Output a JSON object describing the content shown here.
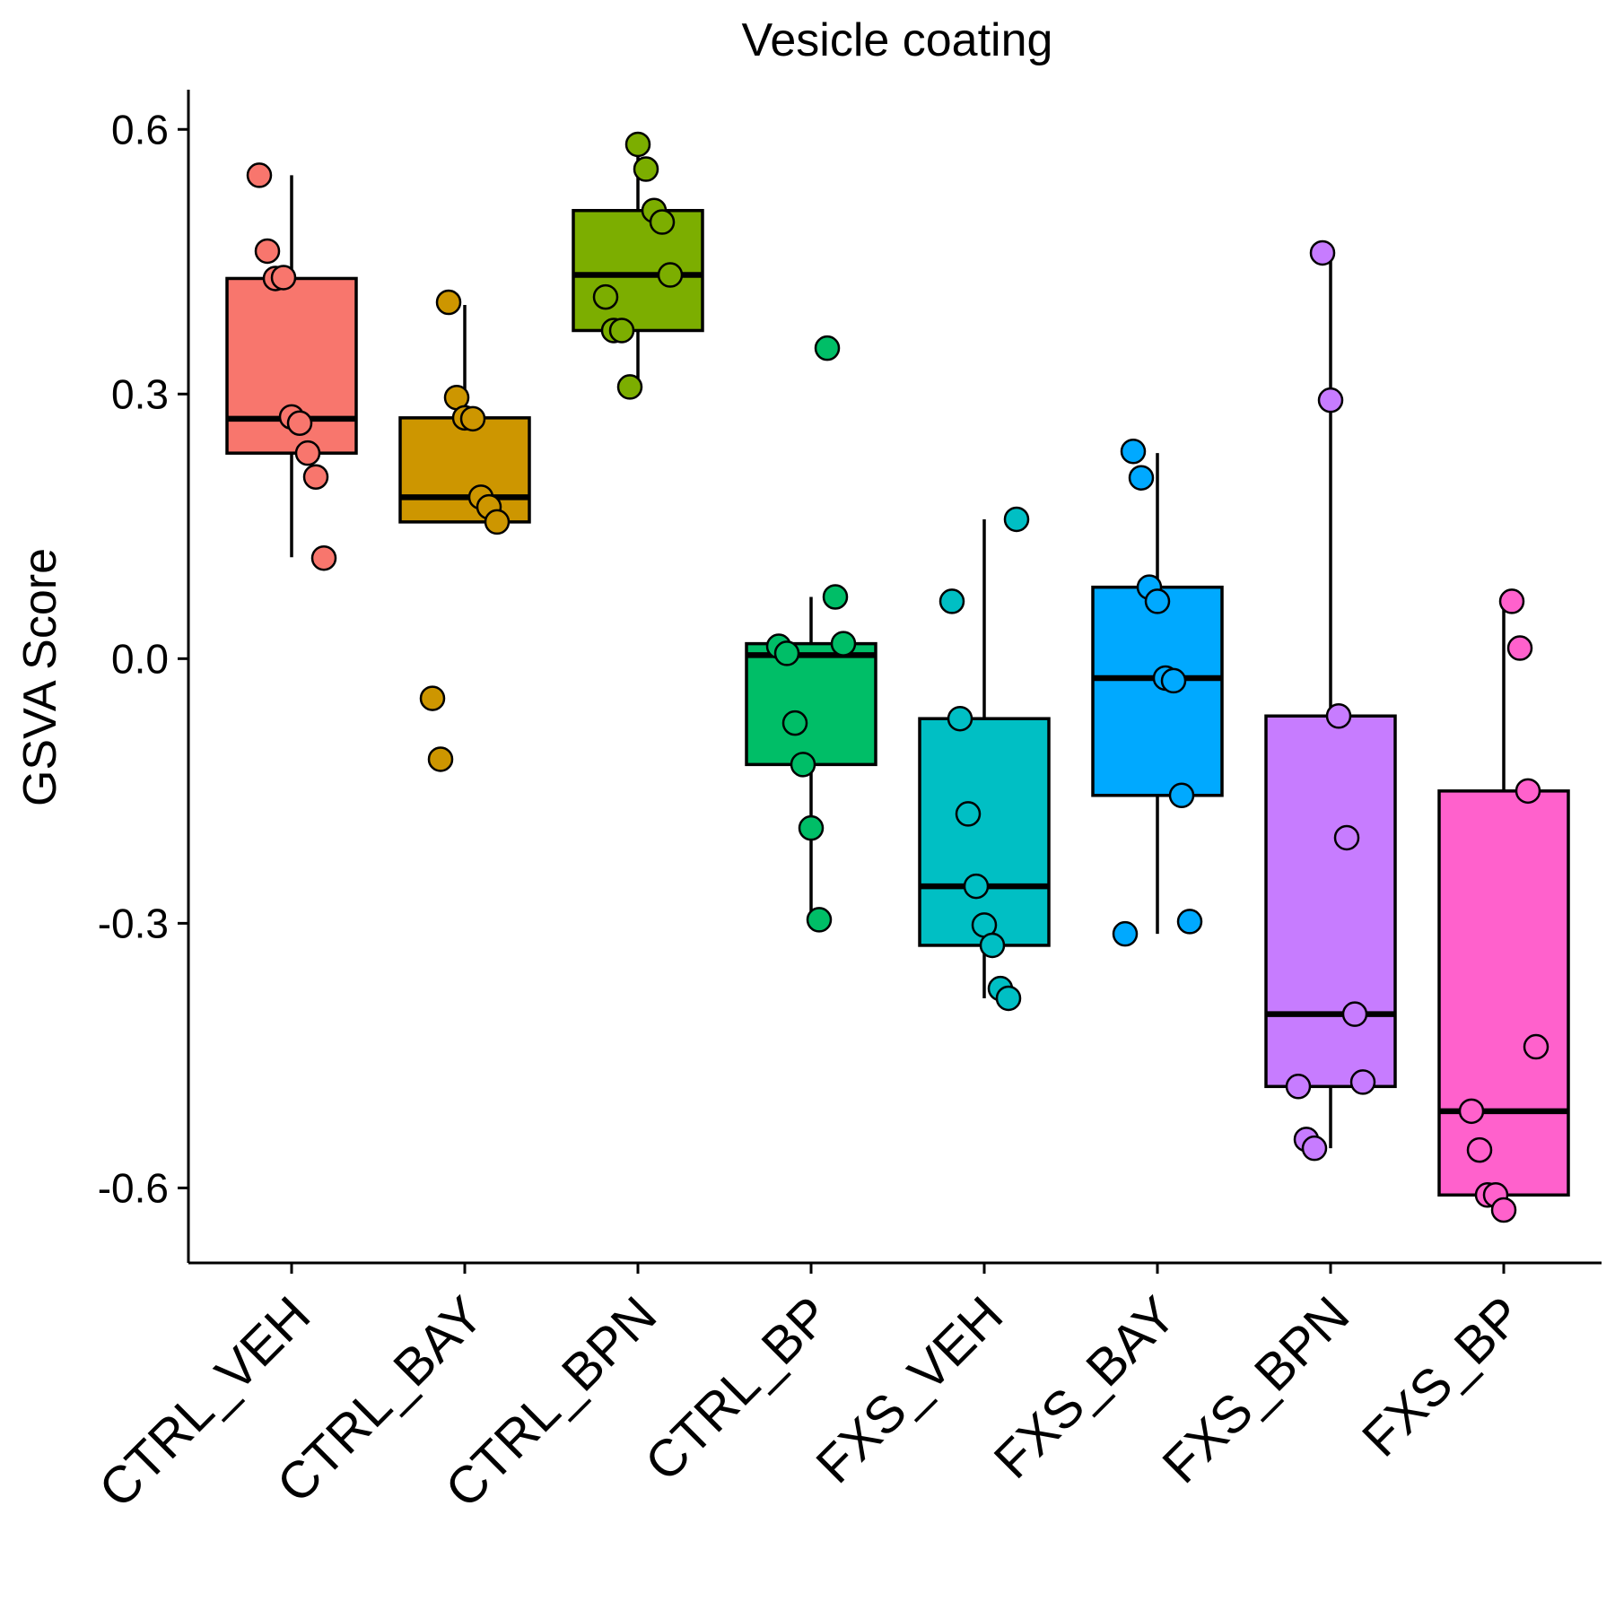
{
  "chart_data": {
    "type": "box",
    "title": "Vesicle coating",
    "xlabel": "",
    "ylabel": "GSVA Score",
    "ylim": [
      -0.685,
      0.645
    ],
    "yticks": [
      "0.6",
      "0.3",
      "0.0",
      "-0.3",
      "-0.6"
    ],
    "ytick_values": [
      0.6,
      0.3,
      0.0,
      -0.3,
      -0.6
    ],
    "grid": false,
    "legend": "none",
    "groups": [
      {
        "name": "CTRL_VEH",
        "color": "#F8766D",
        "box": {
          "lower_whisker": 0.115,
          "q1": 0.233,
          "median": 0.272,
          "q3": 0.431,
          "upper_whisker": 0.548
        },
        "points": [
          0.548,
          0.462,
          0.431,
          0.432,
          0.274,
          0.267,
          0.233,
          0.206,
          0.114
        ]
      },
      {
        "name": "CTRL_BAY",
        "color": "#CD9600",
        "box": {
          "lower_whisker": 0.155,
          "q1": 0.155,
          "median": 0.183,
          "q3": 0.273,
          "upper_whisker": 0.401
        },
        "points": [
          0.404,
          0.296,
          0.273,
          0.272,
          0.183,
          0.172,
          0.155,
          -0.045,
          -0.114
        ]
      },
      {
        "name": "CTRL_BPN",
        "color": "#7CAE00",
        "box": {
          "lower_whisker": 0.308,
          "q1": 0.372,
          "median": 0.435,
          "q3": 0.508,
          "upper_whisker": 0.583
        },
        "points": [
          0.583,
          0.555,
          0.508,
          0.495,
          0.435,
          0.41,
          0.372,
          0.372,
          0.308
        ]
      },
      {
        "name": "CTRL_BP",
        "color": "#00BE67",
        "box": {
          "lower_whisker": -0.296,
          "q1": -0.12,
          "median": 0.004,
          "q3": 0.017,
          "upper_whisker": 0.07
        },
        "points": [
          0.352,
          0.07,
          0.017,
          0.014,
          0.006,
          -0.073,
          -0.12,
          -0.192,
          -0.296
        ]
      },
      {
        "name": "FXS_VEH",
        "color": "#00BFC4",
        "box": {
          "lower_whisker": -0.385,
          "q1": -0.325,
          "median": -0.258,
          "q3": -0.068,
          "upper_whisker": 0.158
        },
        "points": [
          0.158,
          0.065,
          -0.068,
          -0.176,
          -0.258,
          -0.302,
          -0.325,
          -0.374,
          -0.385
        ]
      },
      {
        "name": "FXS_BAY",
        "color": "#00A9FF",
        "box": {
          "lower_whisker": -0.312,
          "q1": -0.155,
          "median": -0.022,
          "q3": 0.081,
          "upper_whisker": 0.233
        },
        "points": [
          0.235,
          0.205,
          0.081,
          0.065,
          -0.022,
          -0.025,
          -0.155,
          -0.298,
          -0.312
        ]
      },
      {
        "name": "FXS_BPN",
        "color": "#C77CFF",
        "box": {
          "lower_whisker": -0.555,
          "q1": -0.485,
          "median": -0.403,
          "q3": -0.065,
          "upper_whisker": 0.46
        },
        "points": [
          0.46,
          0.293,
          -0.065,
          -0.203,
          -0.403,
          -0.48,
          -0.485,
          -0.545,
          -0.555
        ]
      },
      {
        "name": "FXS_BP",
        "color": "#FF61CC",
        "box": {
          "lower_whisker": -0.625,
          "q1": -0.608,
          "median": -0.513,
          "q3": -0.15,
          "upper_whisker": 0.065
        },
        "points": [
          0.065,
          0.012,
          -0.15,
          -0.44,
          -0.513,
          -0.557,
          -0.608,
          -0.608,
          -0.625
        ]
      }
    ]
  }
}
